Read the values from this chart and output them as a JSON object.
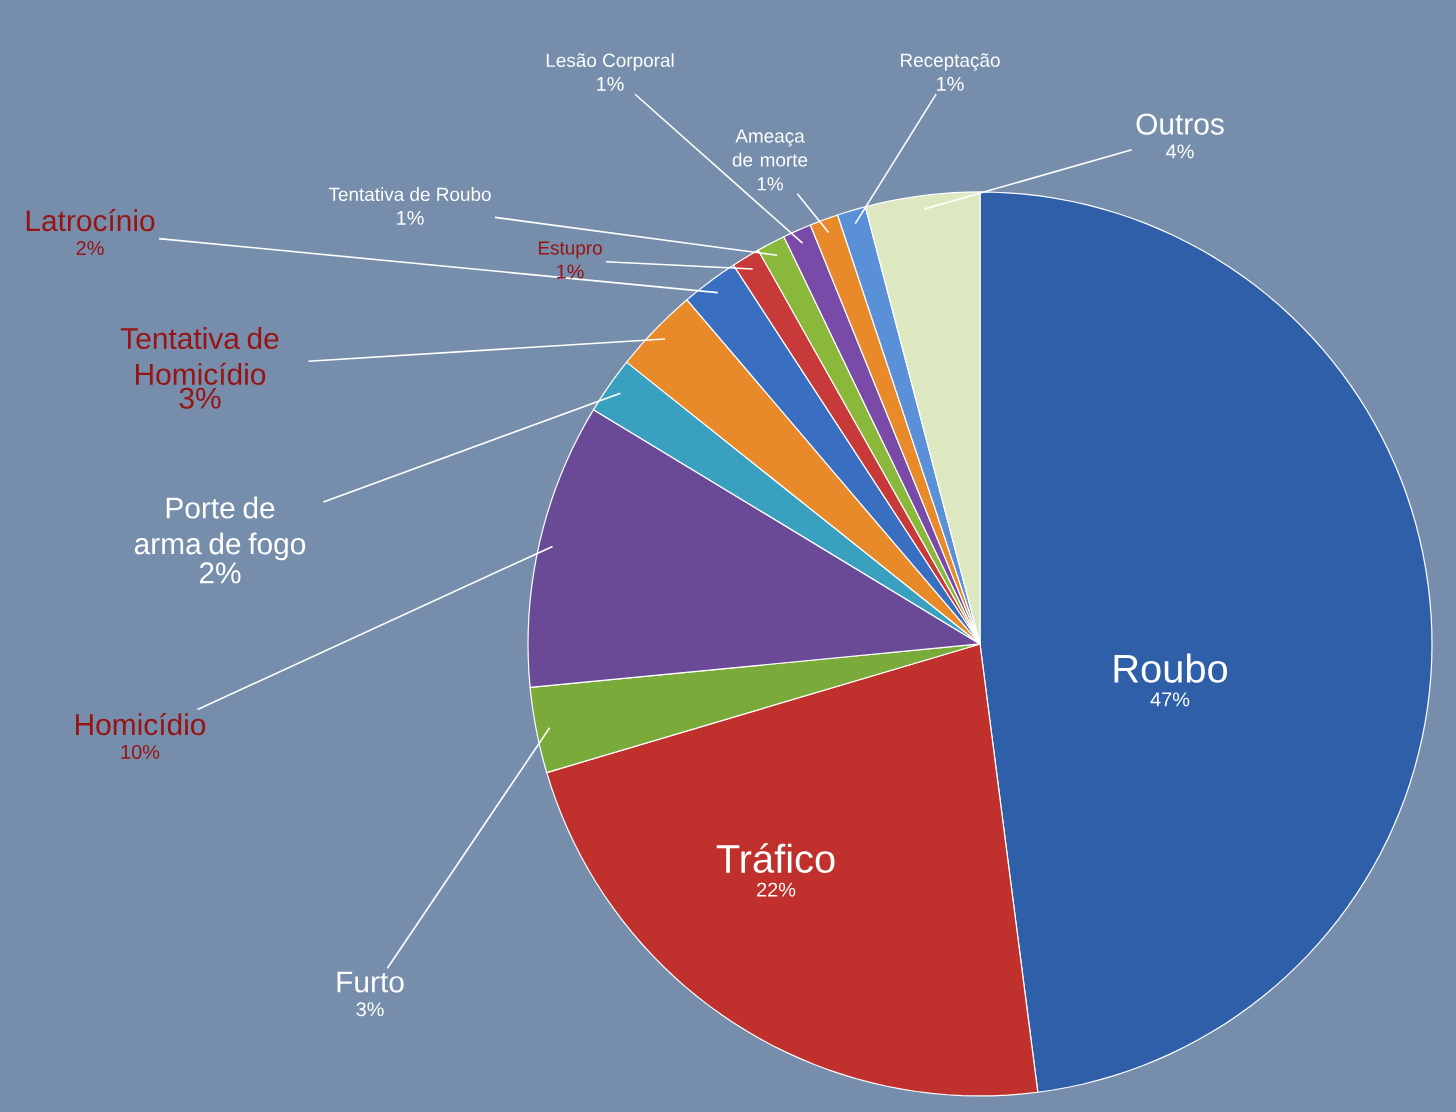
{
  "chart_data": {
    "type": "pie",
    "categories": [
      "Roubo",
      "Tráfico",
      "Furto",
      "Homicídio",
      "Porte de arma de fogo",
      "Tentativa de Homicídio",
      "Latrocínio",
      "Estupro",
      "Tentativa de Roubo",
      "Lesão Corporal",
      "Ameaça de morte",
      "Receptação",
      "Outros"
    ],
    "values": [
      47,
      22,
      3,
      10,
      2,
      3,
      2,
      1,
      1,
      1,
      1,
      1,
      4
    ],
    "value_labels": [
      "47%",
      "22%",
      "3%",
      "10%",
      "2%",
      "3%",
      "2%",
      "1%",
      "1%",
      "1%",
      "1%",
      "1%",
      "4%"
    ],
    "colors": [
      "#2e5fa8",
      "#c0302c",
      "#7aab3a",
      "#6a4a96",
      "#3aa0c0",
      "#e8892a",
      "#3a6ec0",
      "#c83a3a",
      "#8ab83a",
      "#7a4aa8",
      "#e8892a",
      "#5a90d8",
      "#dde8c0"
    ]
  }
}
